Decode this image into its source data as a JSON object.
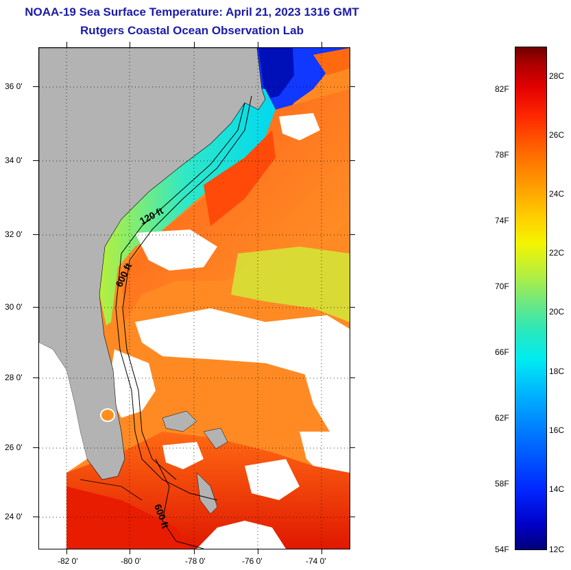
{
  "title": {
    "line1": "NOAA-19 Sea Surface Temperature:  April 21, 2023 1316 GMT",
    "line2": "Rutgers Coastal Ocean Observation Lab"
  },
  "map": {
    "lat_labels": [
      "36 0'",
      "34 0'",
      "32 0'",
      "30 0'",
      "28 0'",
      "26 0'",
      "24 0'"
    ],
    "lon_labels": [
      "-82 0'",
      "-80 0'",
      "-78 0'",
      "-76 0'",
      "-74 0'"
    ],
    "contour_labels": [
      "120 ft",
      "600 ft",
      "600 ft"
    ]
  },
  "colorbar": {
    "fahrenheit_labels": [
      "82F",
      "78F",
      "74F",
      "70F",
      "66F",
      "62F",
      "58F",
      "54F"
    ],
    "celsius_labels": [
      "28C",
      "26C",
      "24C",
      "22C",
      "20C",
      "18C",
      "16C",
      "14C",
      "12C"
    ]
  },
  "colors": {
    "title": "#1a1aa6",
    "land": "#b3b3b3",
    "cloud": "#ffffff",
    "cold": "#0000c8",
    "shelf_cool": "#2ee8d0",
    "warm": "#ff7a1a",
    "hot": "#e81c00"
  }
}
